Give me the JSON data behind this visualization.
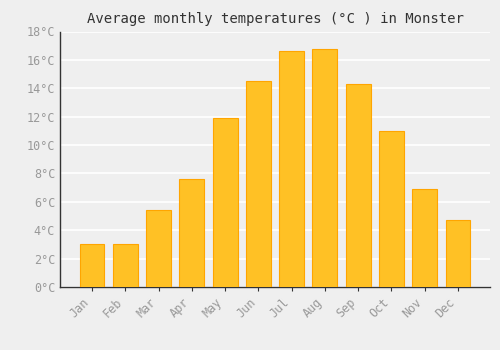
{
  "title": "Average monthly temperatures (°C ) in Monster",
  "months": [
    "Jan",
    "Feb",
    "Mar",
    "Apr",
    "May",
    "Jun",
    "Jul",
    "Aug",
    "Sep",
    "Oct",
    "Nov",
    "Dec"
  ],
  "values": [
    3.0,
    3.0,
    5.4,
    7.6,
    11.9,
    14.5,
    16.6,
    16.8,
    14.3,
    11.0,
    6.9,
    4.7
  ],
  "bar_color_top": "#FFC125",
  "bar_color_bottom": "#FFB000",
  "bar_edge_color": "#FFA500",
  "background_color": "#efefef",
  "grid_color": "#ffffff",
  "text_color": "#999999",
  "spine_color": "#333333",
  "ylim": [
    0,
    18
  ],
  "yticks": [
    0,
    2,
    4,
    6,
    8,
    10,
    12,
    14,
    16,
    18
  ],
  "title_fontsize": 10,
  "tick_fontsize": 8.5
}
